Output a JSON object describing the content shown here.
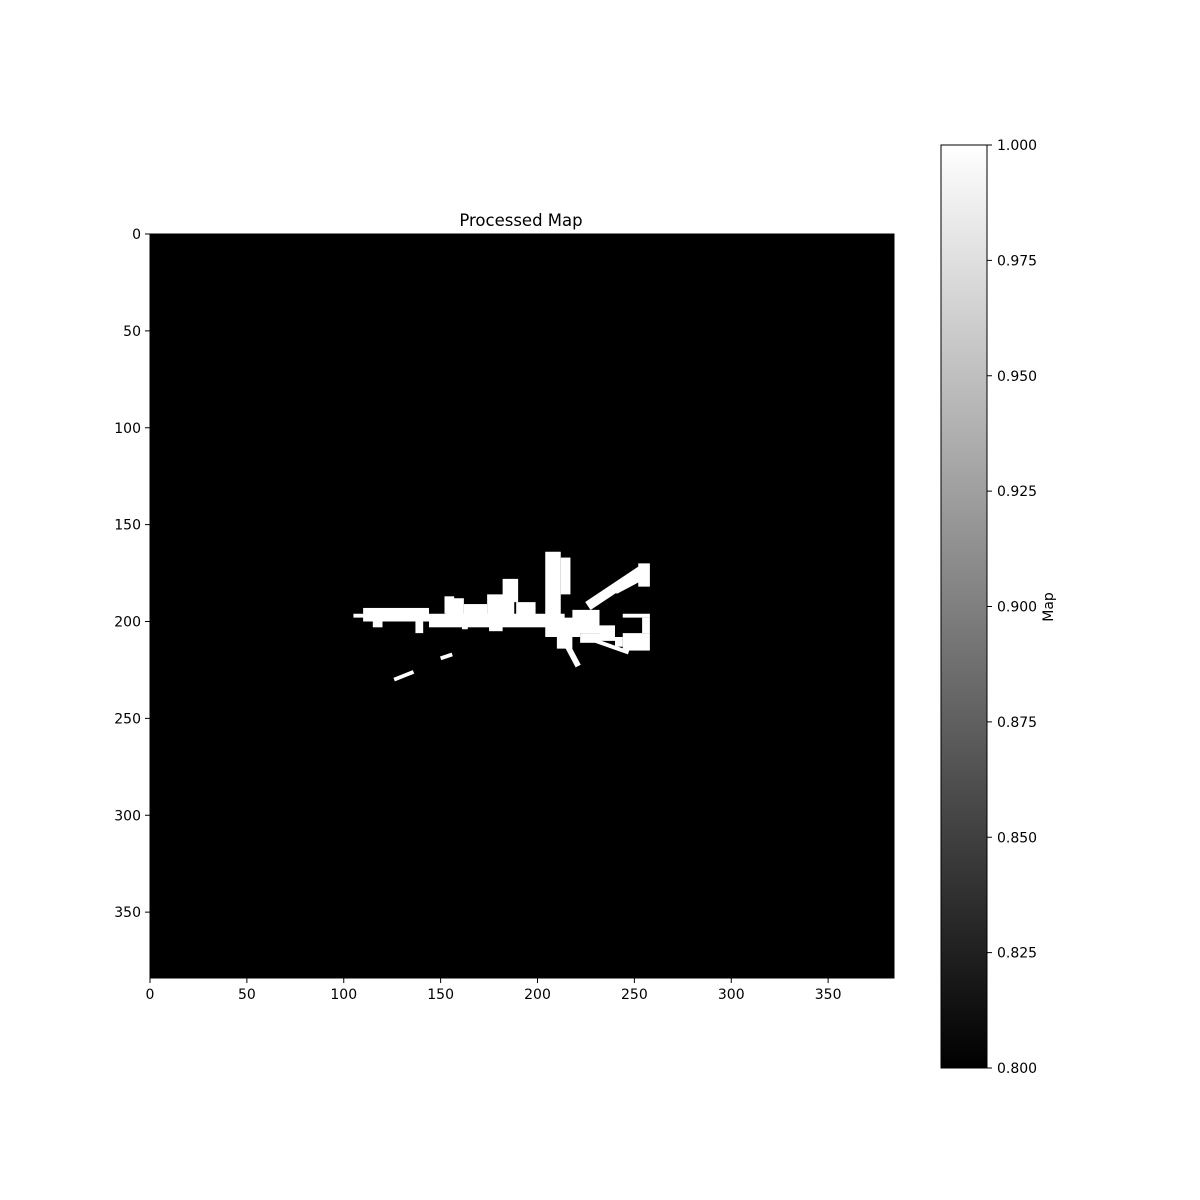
{
  "chart_data": {
    "type": "heatmap",
    "title": "Processed Map",
    "xlabel": "",
    "ylabel": "",
    "xlim": [
      0,
      384
    ],
    "ylim": [
      384,
      0
    ],
    "xticks": [
      0,
      50,
      100,
      150,
      200,
      250,
      300,
      350
    ],
    "yticks": [
      0,
      50,
      100,
      150,
      200,
      250,
      300,
      350
    ],
    "colormap": "gray",
    "background_value": 0.8,
    "foreground_value": 1.0,
    "colorbar": {
      "label": "Map",
      "range": [
        0.8,
        1.0
      ],
      "ticks": [
        "1.000",
        "0.975",
        "0.950",
        "0.925",
        "0.900",
        "0.875",
        "0.850",
        "0.825",
        "0.800"
      ],
      "tick_values": [
        1.0,
        0.975,
        0.95,
        0.925,
        0.9,
        0.875,
        0.85,
        0.825,
        0.8
      ]
    },
    "free_regions": [
      {
        "name": "west-corridor",
        "x0": 105,
        "x1": 112,
        "y0": 196,
        "y1": 198
      },
      {
        "name": "corridor-main",
        "x0": 110,
        "x1": 144,
        "y0": 193,
        "y1": 200
      },
      {
        "name": "corridor-mid",
        "x0": 144,
        "x1": 214,
        "y0": 196,
        "y1": 203
      },
      {
        "name": "stub-115",
        "x0": 115,
        "x1": 120,
        "y0": 199,
        "y1": 203
      },
      {
        "name": "stub-138",
        "x0": 137,
        "x1": 141,
        "y0": 199,
        "y1": 206
      },
      {
        "name": "room-152",
        "x0": 152,
        "x1": 157,
        "y0": 187,
        "y1": 196
      },
      {
        "name": "block-153",
        "x0": 153,
        "x1": 162,
        "y0": 188,
        "y1": 197
      },
      {
        "name": "block-162",
        "x0": 162,
        "x1": 174,
        "y0": 191,
        "y1": 197
      },
      {
        "name": "block-174",
        "x0": 174,
        "x1": 188,
        "y0": 186,
        "y1": 197
      },
      {
        "name": "room-183",
        "x0": 182,
        "x1": 190,
        "y0": 178,
        "y1": 190
      },
      {
        "name": "stub-175",
        "x0": 175,
        "x1": 182,
        "y0": 201,
        "y1": 205
      },
      {
        "name": "stub-162",
        "x0": 161,
        "x1": 164,
        "y0": 200,
        "y1": 204
      },
      {
        "name": "block-190",
        "x0": 189,
        "x1": 199,
        "y0": 190,
        "y1": 199
      },
      {
        "name": "tower",
        "x0": 204,
        "x1": 212,
        "y0": 164,
        "y1": 198
      },
      {
        "name": "tower-right",
        "x0": 212,
        "x1": 217,
        "y0": 167,
        "y1": 186
      },
      {
        "name": "center-hub",
        "x0": 204,
        "x1": 222,
        "y0": 198,
        "y1": 208
      },
      {
        "name": "block-220",
        "x0": 218,
        "x1": 232,
        "y0": 194,
        "y1": 206
      },
      {
        "name": "block-232",
        "x0": 232,
        "x1": 240,
        "y0": 202,
        "y1": 210
      },
      {
        "name": "block-222",
        "x0": 222,
        "x1": 232,
        "y0": 206,
        "y1": 211
      },
      {
        "name": "block-210b",
        "x0": 210,
        "x1": 218,
        "y0": 208,
        "y1": 214
      },
      {
        "name": "east-strip",
        "x0": 244,
        "x1": 258,
        "y0": 196,
        "y1": 198
      },
      {
        "name": "east-post",
        "x0": 254,
        "x1": 258,
        "y0": 198,
        "y1": 206
      },
      {
        "name": "east-room",
        "x0": 244,
        "x1": 258,
        "y0": 206,
        "y1": 215
      },
      {
        "name": "ne-room",
        "x0": 252,
        "x1": 258,
        "y0": 170,
        "y1": 182
      },
      {
        "name": "stub-240",
        "x0": 240,
        "x1": 244,
        "y0": 208,
        "y1": 213
      }
    ],
    "free_diagonals": [
      {
        "name": "diag-ne",
        "from": [
          226,
          192
        ],
        "to": [
          256,
          172
        ],
        "width": 5
      },
      {
        "name": "diag-ne2",
        "from": [
          240,
          184
        ],
        "to": [
          255,
          176
        ],
        "width": 4
      },
      {
        "name": "diag-se",
        "from": [
          212,
          206
        ],
        "to": [
          221,
          223
        ],
        "width": 3
      },
      {
        "name": "diag-ray-east",
        "from": [
          230,
          210
        ],
        "to": [
          247,
          216
        ],
        "width": 2
      },
      {
        "name": "diag-ray-west",
        "from": [
          126,
          230
        ],
        "to": [
          136,
          226
        ],
        "width": 2
      },
      {
        "name": "diag-ray-sw",
        "from": [
          150,
          219
        ],
        "to": [
          156,
          217
        ],
        "width": 2
      }
    ]
  }
}
